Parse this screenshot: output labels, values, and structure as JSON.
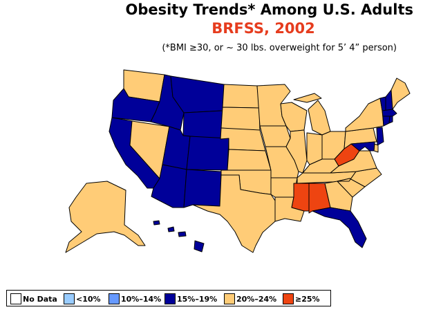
{
  "header": {
    "title": "Obesity Trends*  Among U.S. Adults",
    "subtitle": "BRFSS, 2002",
    "caption": "(*BMI ≥30, or ~ 30 lbs. overweight for 5’ 4” person)"
  },
  "colors": {
    "subtitle": "#e63c1e",
    "no_data": "#ffffff",
    "lt10": "#99ccff",
    "p10_14": "#6699ff",
    "p15_19": "#000099",
    "p20_24": "#ffcc77",
    "ge25": "#ee4411"
  },
  "legend": [
    {
      "key": "no_data",
      "label": "No Data"
    },
    {
      "key": "lt10",
      "label": "<10%"
    },
    {
      "key": "p10_14",
      "label": "10%–14%"
    },
    {
      "key": "p15_19",
      "label": "15%–19%"
    },
    {
      "key": "p20_24",
      "label": "20%–24%"
    },
    {
      "key": "ge25",
      "label": "≥25%"
    }
  ],
  "state_categories": {
    "WA": "p20_24",
    "OR": "p15_19",
    "CA": "p15_19",
    "NV": "p20_24",
    "ID": "p15_19",
    "MT": "p15_19",
    "WY": "p15_19",
    "UT": "p15_19",
    "CO": "p15_19",
    "AZ": "p15_19",
    "NM": "p15_19",
    "ND": "p20_24",
    "SD": "p20_24",
    "NE": "p20_24",
    "KS": "p20_24",
    "OK": "p20_24",
    "TX": "p20_24",
    "MN": "p20_24",
    "IA": "p20_24",
    "MO": "p20_24",
    "AR": "p20_24",
    "LA": "p20_24",
    "WI": "p20_24",
    "IL": "p20_24",
    "MI": "p20_24",
    "IN": "p20_24",
    "OH": "p20_24",
    "KY": "p20_24",
    "TN": "p20_24",
    "MS": "ge25",
    "AL": "ge25",
    "GA": "p20_24",
    "FL": "p15_19",
    "SC": "p20_24",
    "NC": "p20_24",
    "VA": "p20_24",
    "WV": "ge25",
    "PA": "p20_24",
    "NY": "p20_24",
    "ME": "p20_24",
    "VT": "p15_19",
    "NH": "p15_19",
    "MA": "p15_19",
    "CT": "p15_19",
    "RI": "p15_19",
    "NJ": "p15_19",
    "DE": "p20_24",
    "MD": "p15_19",
    "AK": "p20_24",
    "HI": "p15_19"
  }
}
